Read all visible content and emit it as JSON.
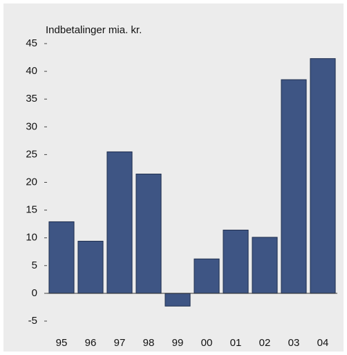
{
  "chart_data": {
    "type": "bar",
    "y_label": "Indbetalinger mia. kr.",
    "categories": [
      "95",
      "96",
      "97",
      "98",
      "99",
      "00",
      "01",
      "02",
      "03",
      "04"
    ],
    "values": [
      12.9,
      9.4,
      25.5,
      21.5,
      -2.3,
      6.2,
      11.4,
      10.1,
      38.5,
      42.3
    ],
    "color": "#3e5584",
    "ylim": [
      -5,
      45
    ],
    "yticks": [
      -5,
      0,
      5,
      10,
      15,
      20,
      25,
      30,
      35,
      40,
      45
    ],
    "grid": false
  }
}
